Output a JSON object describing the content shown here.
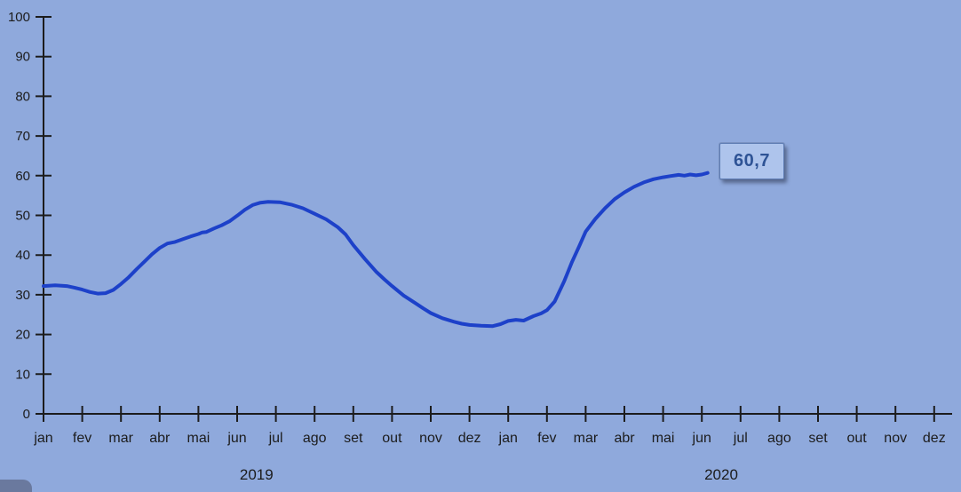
{
  "chart_data": {
    "type": "line",
    "title": "",
    "ylim": [
      0,
      100
    ],
    "y_ticks": [
      0,
      10,
      20,
      30,
      40,
      50,
      60,
      70,
      80,
      90,
      100
    ],
    "x_labels": [
      "jan",
      "fev",
      "mar",
      "abr",
      "mai",
      "jun",
      "jul",
      "ago",
      "set",
      "out",
      "nov",
      "dez",
      "jan",
      "fev",
      "mar",
      "abr",
      "mai",
      "jun",
      "jul",
      "ago",
      "set",
      "out",
      "nov",
      "dez"
    ],
    "year_groups": [
      {
        "label": "2019",
        "start": 0,
        "end": 11
      },
      {
        "label": "2020",
        "start": 12,
        "end": 23
      }
    ],
    "grid": false,
    "legend": "none",
    "series": [
      {
        "color": "#1d41c9",
        "monthly_values": [
          32.2,
          31.3,
          32.7,
          41.8,
          45.3,
          50.6,
          52.9,
          50.4,
          42.5,
          32.2,
          25.4,
          22.4,
          23.4,
          26.1,
          45.9,
          55.8,
          59.6,
          60.7,
          null,
          null,
          null,
          null,
          null,
          null
        ],
        "end_label": "60,7",
        "trace": [
          [
            0,
            32.2
          ],
          [
            0.3,
            32.4
          ],
          [
            0.6,
            32.2
          ],
          [
            0.8,
            31.8
          ],
          [
            1.0,
            31.3
          ],
          [
            1.2,
            30.7
          ],
          [
            1.4,
            30.3
          ],
          [
            1.6,
            30.4
          ],
          [
            1.8,
            31.2
          ],
          [
            2.0,
            32.7
          ],
          [
            2.2,
            34.4
          ],
          [
            2.4,
            36.4
          ],
          [
            2.6,
            38.3
          ],
          [
            2.8,
            40.2
          ],
          [
            3.0,
            41.8
          ],
          [
            3.2,
            42.9
          ],
          [
            3.4,
            43.3
          ],
          [
            3.6,
            44.0
          ],
          [
            3.8,
            44.7
          ],
          [
            4.0,
            45.3
          ],
          [
            4.1,
            45.7
          ],
          [
            4.2,
            45.8
          ],
          [
            4.4,
            46.7
          ],
          [
            4.6,
            47.5
          ],
          [
            4.8,
            48.5
          ],
          [
            5.0,
            49.9
          ],
          [
            5.2,
            51.4
          ],
          [
            5.4,
            52.6
          ],
          [
            5.6,
            53.2
          ],
          [
            5.8,
            53.4
          ],
          [
            6.1,
            53.3
          ],
          [
            6.4,
            52.7
          ],
          [
            6.7,
            51.8
          ],
          [
            7.0,
            50.4
          ],
          [
            7.3,
            49.0
          ],
          [
            7.6,
            47.0
          ],
          [
            7.8,
            45.2
          ],
          [
            8.0,
            42.5
          ],
          [
            8.3,
            39.0
          ],
          [
            8.6,
            35.7
          ],
          [
            8.8,
            33.9
          ],
          [
            9.0,
            32.2
          ],
          [
            9.3,
            29.8
          ],
          [
            9.6,
            27.9
          ],
          [
            9.8,
            26.6
          ],
          [
            10.0,
            25.4
          ],
          [
            10.3,
            24.1
          ],
          [
            10.6,
            23.2
          ],
          [
            10.8,
            22.7
          ],
          [
            11.0,
            22.4
          ],
          [
            11.3,
            22.2
          ],
          [
            11.6,
            22.1
          ],
          [
            11.8,
            22.6
          ],
          [
            12.0,
            23.4
          ],
          [
            12.2,
            23.7
          ],
          [
            12.4,
            23.5
          ],
          [
            12.65,
            24.6
          ],
          [
            12.85,
            25.3
          ],
          [
            13.0,
            26.1
          ],
          [
            13.2,
            28.3
          ],
          [
            13.45,
            33.5
          ],
          [
            13.65,
            38.3
          ],
          [
            13.85,
            42.6
          ],
          [
            14.0,
            45.9
          ],
          [
            14.25,
            49.1
          ],
          [
            14.5,
            51.8
          ],
          [
            14.75,
            54.1
          ],
          [
            15.0,
            55.8
          ],
          [
            15.25,
            57.2
          ],
          [
            15.5,
            58.3
          ],
          [
            15.75,
            59.1
          ],
          [
            16.0,
            59.6
          ],
          [
            16.2,
            59.9
          ],
          [
            16.4,
            60.2
          ],
          [
            16.55,
            60.0
          ],
          [
            16.7,
            60.3
          ],
          [
            16.85,
            60.1
          ],
          [
            17.0,
            60.3
          ],
          [
            17.15,
            60.7
          ]
        ]
      }
    ]
  },
  "colors": {
    "background": "#8fa9dc",
    "axis": "#1c1c1c",
    "tick_text": "#1c1c1c",
    "series_line": "#1d41c9",
    "label_box_fill": "#aec4ec",
    "label_box_border": "#5f7db4",
    "label_text": "#2e5395",
    "corner_chip": "#6a799e"
  }
}
